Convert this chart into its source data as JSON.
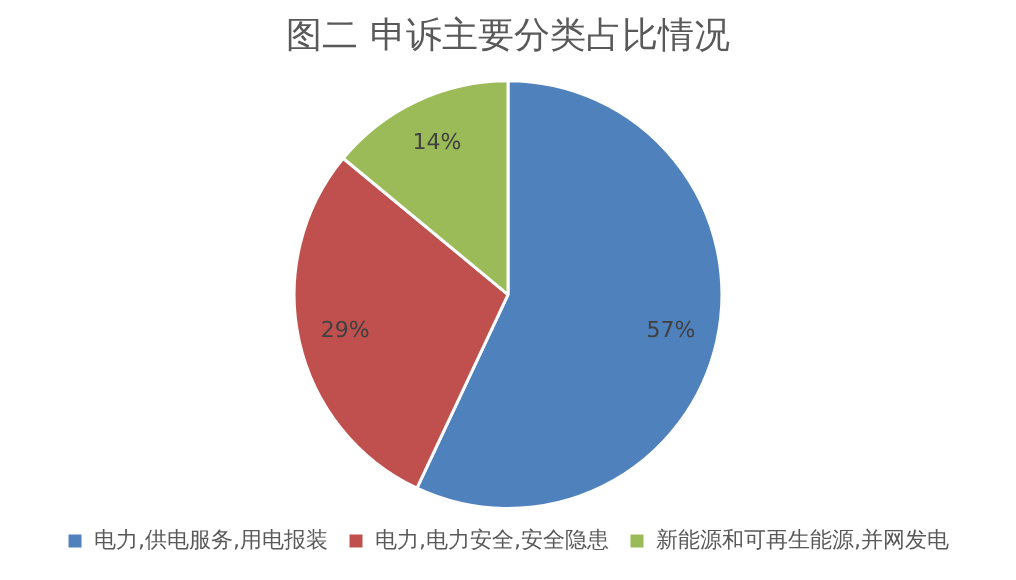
{
  "chart_data": {
    "type": "pie",
    "title": "图二 申诉主要分类占比情况",
    "categories": [
      "电力,供电服务,用电报装",
      "电力,电力安全,安全隐患",
      "新能源和可再生能源,并网发电"
    ],
    "values": [
      57,
      29,
      14
    ],
    "colors": [
      "#4f81bd",
      "#c0504d",
      "#9bbb59"
    ],
    "value_labels": [
      "57%",
      "29%",
      "14%"
    ],
    "legend": "bottom"
  }
}
